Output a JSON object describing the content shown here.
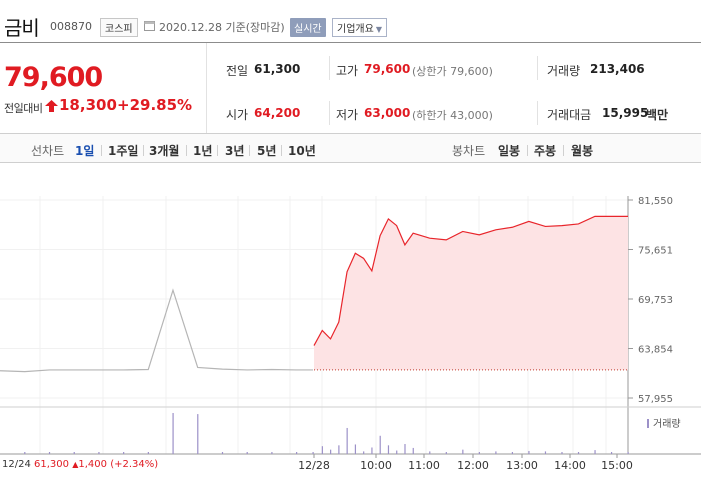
{
  "header": {
    "stock_name": "금비",
    "stock_code": "008870",
    "market": "코스피",
    "date_text": "2020.12.28 기준(장마감)",
    "live_button": "실시간",
    "company_info_button": "기업개요",
    "dropdown_icon": "chevron-down-icon"
  },
  "price_panel": {
    "current_price": "79,600",
    "change_label": "전일대비",
    "change_value": "18,300",
    "change_pct": "+29.85%",
    "up_color": "#e01b22"
  },
  "stats": {
    "prev_label": "전일",
    "prev_value": "61,300",
    "high_label": "고가",
    "high_value": "79,600",
    "high_sub": "(상한가 79,600)",
    "volume_label": "거래량",
    "volume_value": "213,406",
    "open_label": "시가",
    "open_value": "64,200",
    "low_label": "저가",
    "low_value": "63,000",
    "low_sub": "(하한가 43,000)",
    "amount_label": "거래대금",
    "amount_value": "15,995",
    "amount_unit": "백만"
  },
  "toolbar": {
    "line_chart_label": "선차트",
    "periods": [
      "1일",
      "1주일",
      "3개월",
      "1년",
      "3년",
      "5년",
      "10년"
    ],
    "active_period": "1일",
    "candle_label": "봉차트",
    "candles": [
      "일봉",
      "주봉",
      "월봉"
    ]
  },
  "chart_data": {
    "type": "line",
    "y_ticks": [
      "81,550",
      "75,651",
      "69,753",
      "63,854",
      "57,955"
    ],
    "ylim": [
      57955,
      81550
    ],
    "x_ticks": [
      "12/28",
      "10:00",
      "11:00",
      "12:00",
      "13:00",
      "14:00",
      "15:00"
    ],
    "reference_price": 61300,
    "volume_legend": "거래량",
    "series": [
      {
        "period": "12/24",
        "x": [
          "09:00",
          "09:30",
          "10:00",
          "10:30",
          "11:00",
          "11:30",
          "12:00",
          "12:30",
          "13:00",
          "13:30",
          "14:00",
          "14:30",
          "15:00",
          "15:20"
        ],
        "values": [
          61200,
          61100,
          61300,
          61300,
          61300,
          61300,
          61350,
          70800,
          61600,
          61400,
          61300,
          61350,
          61300,
          61300
        ]
      },
      {
        "period": "12/28",
        "x": [
          "09:00",
          "09:10",
          "09:20",
          "09:30",
          "09:40",
          "09:50",
          "10:00",
          "10:10",
          "10:20",
          "10:30",
          "10:40",
          "10:50",
          "11:00",
          "11:20",
          "11:40",
          "12:00",
          "12:20",
          "12:40",
          "13:00",
          "13:20",
          "13:40",
          "14:00",
          "14:20",
          "14:40",
          "15:00",
          "15:20"
        ],
        "values": [
          64200,
          66000,
          65000,
          67000,
          73000,
          75200,
          74600,
          73100,
          77300,
          79300,
          78500,
          76200,
          77600,
          77000,
          76800,
          77800,
          77400,
          78000,
          78300,
          79000,
          78400,
          78500,
          78700,
          79600,
          79600,
          79600
        ]
      }
    ],
    "bottom_info": {
      "date": "12/24",
      "close": "61,300",
      "change": "1,400",
      "change_pct": "(+2.34%)"
    }
  }
}
